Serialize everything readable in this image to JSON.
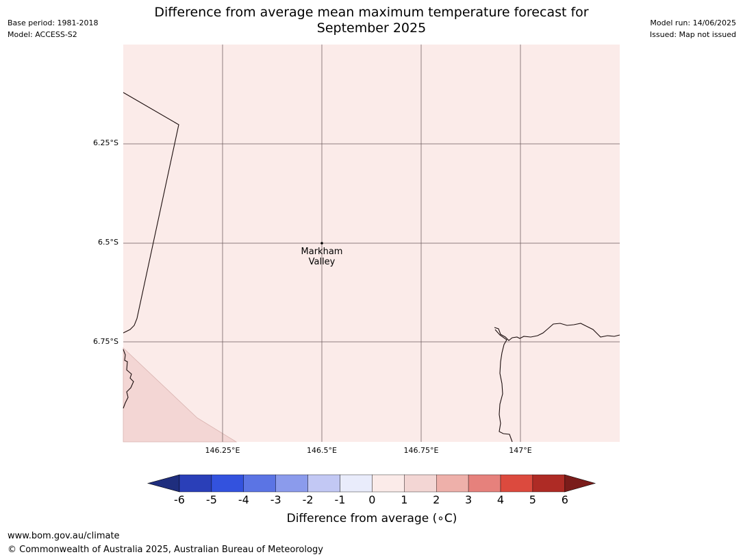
{
  "header": {
    "base_period": "Base period: 1981-2018",
    "model": "Model: ACCESS-S2",
    "model_run": "Model run: 14/06/2025",
    "issued": "Issued: Map not issued",
    "title_line1": "Difference from average mean maximum temperature forecast for",
    "title_line2": "September 2025"
  },
  "map": {
    "lat_labels": [
      "6.25°S",
      "6.5°S",
      "6.75°S"
    ],
    "lon_labels": [
      "146.25°E",
      "146.5°E",
      "146.75°E",
      "147°E"
    ],
    "place": {
      "name_line1": "Markham",
      "name_line2": "Valley"
    },
    "fill_colors": {
      "class_0_1": "#fbebe9",
      "class_1_2": "#f3d6d4"
    }
  },
  "colorbar": {
    "label": "Difference from average (∘C)",
    "ticks": [
      "-6",
      "-5",
      "-4",
      "-3",
      "-2",
      "-1",
      "0",
      "1",
      "2",
      "3",
      "4",
      "5",
      "6"
    ],
    "colors": [
      "#1f2e7e",
      "#2a3fb8",
      "#3352de",
      "#5b74e4",
      "#8b9bec",
      "#c2c8f4",
      "#e9ecfb",
      "#fbebe9",
      "#f3d6d4",
      "#eeb0aa",
      "#e6817c",
      "#dc4a3e",
      "#ae2b25",
      "#7a1c1a"
    ]
  },
  "footer": {
    "url": "www.bom.gov.au/climate",
    "copyright": "© Commonwealth of Australia 2025, Australian Bureau of Meteorology"
  }
}
